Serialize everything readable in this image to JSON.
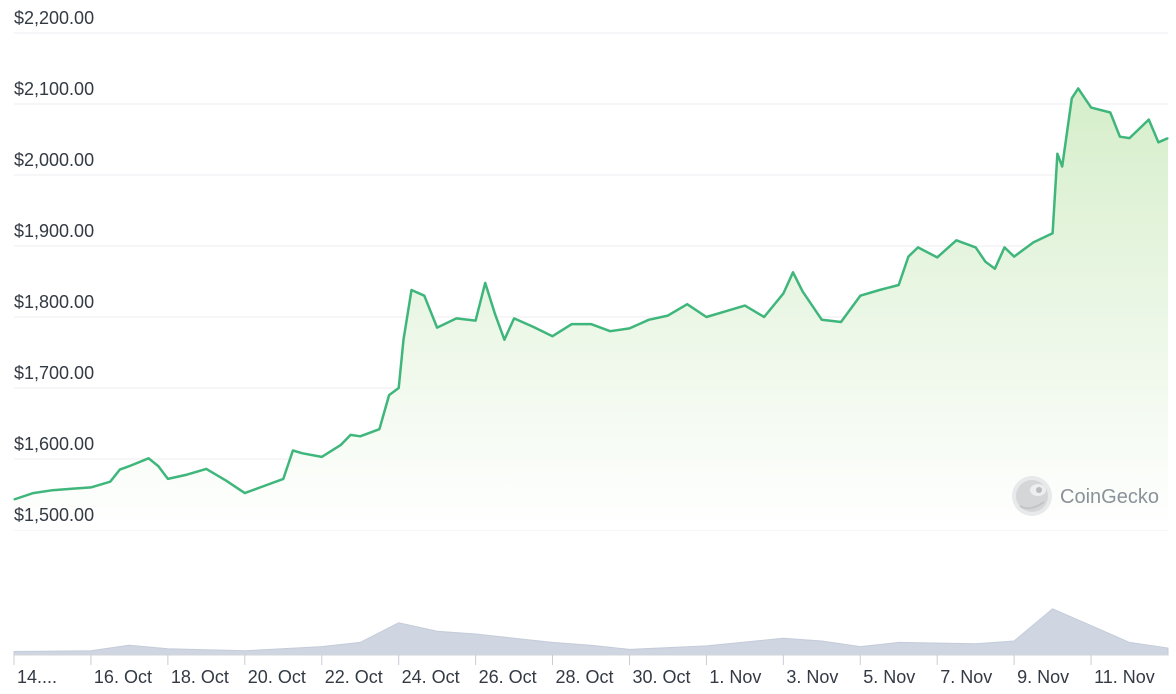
{
  "chart_data": {
    "type": "area",
    "title": "",
    "xlabel": "",
    "ylabel": "",
    "ylim": [
      1500,
      2200
    ],
    "y_ticks": [
      "$1,500.00",
      "$1,600.00",
      "$1,700.00",
      "$1,800.00",
      "$1,900.00",
      "$2,000.00",
      "$2,100.00",
      "$2,200.00"
    ],
    "y_tick_values": [
      1500,
      1600,
      1700,
      1800,
      1900,
      2000,
      2100,
      2200
    ],
    "x_range": [
      "2023-10-14",
      "2023-11-13"
    ],
    "x_ticks": [
      "14....",
      "16. Oct",
      "18. Oct",
      "20. Oct",
      "22. Oct",
      "24. Oct",
      "26. Oct",
      "28. Oct",
      "30. Oct",
      "1. Nov",
      "3. Nov",
      "5. Nov",
      "7. Nov",
      "9. Nov",
      "11. Nov"
    ],
    "x_tick_dates": [
      "2023-10-14",
      "2023-10-16",
      "2023-10-18",
      "2023-10-20",
      "2023-10-22",
      "2023-10-24",
      "2023-10-26",
      "2023-10-28",
      "2023-10-30",
      "2023-11-01",
      "2023-11-03",
      "2023-11-05",
      "2023-11-07",
      "2023-11-09",
      "2023-11-11"
    ],
    "grid": true,
    "line_color": "#3fb67b",
    "fill_color": "#d6efcc",
    "series": [
      {
        "values": [
          [
            "2023-10-14",
            1543
          ],
          [
            "2023-10-14T12",
            1552
          ],
          [
            "2023-10-15",
            1556
          ],
          [
            "2023-10-15T12",
            1558
          ],
          [
            "2023-10-16",
            1560
          ],
          [
            "2023-10-16T12",
            1568
          ],
          [
            "2023-10-16T18",
            1585
          ],
          [
            "2023-10-17",
            1590
          ],
          [
            "2023-10-17T12",
            1601
          ],
          [
            "2023-10-17T18",
            1590
          ],
          [
            "2023-10-18",
            1572
          ],
          [
            "2023-10-18T12",
            1578
          ],
          [
            "2023-10-19",
            1586
          ],
          [
            "2023-10-19T12",
            1570
          ],
          [
            "2023-10-20",
            1552
          ],
          [
            "2023-10-20T12",
            1562
          ],
          [
            "2023-10-21",
            1572
          ],
          [
            "2023-10-21T06",
            1612
          ],
          [
            "2023-10-21T12",
            1608
          ],
          [
            "2023-10-22",
            1603
          ],
          [
            "2023-10-22T12",
            1620
          ],
          [
            "2023-10-22T18",
            1634
          ],
          [
            "2023-10-23",
            1632
          ],
          [
            "2023-10-23T12",
            1642
          ],
          [
            "2023-10-23T18",
            1690
          ],
          [
            "2023-10-24",
            1700
          ],
          [
            "2023-10-24T03",
            1768
          ],
          [
            "2023-10-24T08",
            1838
          ],
          [
            "2023-10-24T16",
            1830
          ],
          [
            "2023-10-25",
            1785
          ],
          [
            "2023-10-25T12",
            1798
          ],
          [
            "2023-10-26",
            1795
          ],
          [
            "2023-10-26T06",
            1848
          ],
          [
            "2023-10-26T12",
            1805
          ],
          [
            "2023-10-26T18",
            1768
          ],
          [
            "2023-10-27",
            1798
          ],
          [
            "2023-10-27T12",
            1786
          ],
          [
            "2023-10-28",
            1773
          ],
          [
            "2023-10-28T12",
            1790
          ],
          [
            "2023-10-29",
            1790
          ],
          [
            "2023-10-29T12",
            1780
          ],
          [
            "2023-10-30",
            1784
          ],
          [
            "2023-10-30T12",
            1796
          ],
          [
            "2023-10-31",
            1802
          ],
          [
            "2023-10-31T12",
            1818
          ],
          [
            "2023-11-01",
            1800
          ],
          [
            "2023-11-01T12",
            1808
          ],
          [
            "2023-11-02",
            1816
          ],
          [
            "2023-11-02T12",
            1800
          ],
          [
            "2023-11-03",
            1833
          ],
          [
            "2023-11-03T06",
            1863
          ],
          [
            "2023-11-03T12",
            1836
          ],
          [
            "2023-11-04",
            1796
          ],
          [
            "2023-11-04T12",
            1793
          ],
          [
            "2023-11-05",
            1830
          ],
          [
            "2023-11-05T12",
            1838
          ],
          [
            "2023-11-06",
            1845
          ],
          [
            "2023-11-06T06",
            1885
          ],
          [
            "2023-11-06T12",
            1898
          ],
          [
            "2023-11-07",
            1884
          ],
          [
            "2023-11-07T12",
            1908
          ],
          [
            "2023-11-08",
            1898
          ],
          [
            "2023-11-08T06",
            1878
          ],
          [
            "2023-11-08T12",
            1868
          ],
          [
            "2023-11-08T18",
            1898
          ],
          [
            "2023-11-09",
            1885
          ],
          [
            "2023-11-09T12",
            1905
          ],
          [
            "2023-11-10",
            1918
          ],
          [
            "2023-11-10T03",
            2030
          ],
          [
            "2023-11-10T06",
            2012
          ],
          [
            "2023-11-10T12",
            2108
          ],
          [
            "2023-11-10T16",
            2122
          ],
          [
            "2023-11-11",
            2095
          ],
          [
            "2023-11-11T12",
            2088
          ],
          [
            "2023-11-11T18",
            2054
          ],
          [
            "2023-11-12",
            2052
          ],
          [
            "2023-11-12T12",
            2078
          ],
          [
            "2023-11-12T18",
            2046
          ],
          [
            "2023-11-13",
            2052
          ]
        ]
      }
    ],
    "volume": [
      [
        "2023-10-14",
        0.05
      ],
      [
        "2023-10-16",
        0.06
      ],
      [
        "2023-10-17",
        0.14
      ],
      [
        "2023-10-18",
        0.09
      ],
      [
        "2023-10-20",
        0.06
      ],
      [
        "2023-10-22",
        0.12
      ],
      [
        "2023-10-23",
        0.18
      ],
      [
        "2023-10-24",
        0.46
      ],
      [
        "2023-10-25",
        0.34
      ],
      [
        "2023-10-26",
        0.3
      ],
      [
        "2023-10-27",
        0.24
      ],
      [
        "2023-10-28",
        0.18
      ],
      [
        "2023-10-29",
        0.14
      ],
      [
        "2023-10-30",
        0.08
      ],
      [
        "2023-11-01",
        0.13
      ],
      [
        "2023-11-03",
        0.24
      ],
      [
        "2023-11-04",
        0.2
      ],
      [
        "2023-11-05",
        0.12
      ],
      [
        "2023-11-06",
        0.18
      ],
      [
        "2023-11-08",
        0.16
      ],
      [
        "2023-11-09",
        0.2
      ],
      [
        "2023-11-10",
        0.66
      ],
      [
        "2023-11-11",
        0.42
      ],
      [
        "2023-11-12",
        0.18
      ],
      [
        "2023-11-13",
        0.1
      ]
    ]
  },
  "watermark": {
    "label": "CoinGecko",
    "icon": "gecko-logo-icon"
  }
}
